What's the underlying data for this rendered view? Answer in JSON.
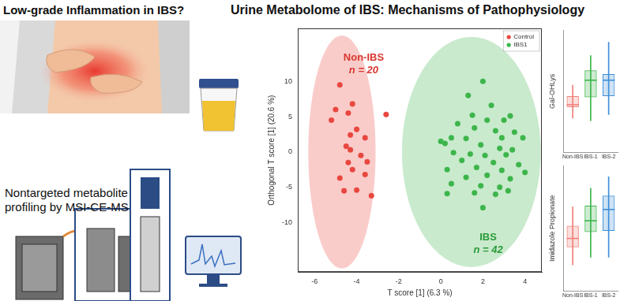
{
  "header": {
    "left_title": "Low-grade Inflammation in IBS?",
    "main_title": "Urine Metabolome of IBS: Mechanisms of Pathophysiology",
    "method_caption": "Nontargeted metabolite profiling by MSI-CE-MS"
  },
  "chart_data": [
    {
      "type": "scatter",
      "x_label": "T score [1] (6.3 %)",
      "y_label": "Orthogonal T score [1] (20.6 %)",
      "xlim": [
        -6.8,
        4.8
      ],
      "xticks": [
        -6,
        -4,
        -2,
        0,
        2,
        4
      ],
      "ylim": [
        -17,
        17.5
      ],
      "yticks": [
        -10,
        -5,
        0,
        5,
        10
      ],
      "grid": false,
      "legend": "upper right",
      "series": [
        {
          "name": "Control",
          "color": "#e8473f",
          "marker": "circle",
          "x": [
            -4.8,
            -4.2,
            -5.0,
            -4.4,
            -5.2,
            -2.6,
            -4.0,
            -4.3,
            -3.6,
            -4.5,
            -4.3,
            -3.8,
            -4.4,
            -3.5,
            -4.2,
            -3.6,
            -4.8,
            -4.6,
            -4.0,
            -3.3
          ],
          "y": [
            9.5,
            6.8,
            6.0,
            5.5,
            4.5,
            5.3,
            3.2,
            2.4,
            2.0,
            0.8,
            0.3,
            -0.5,
            -1.5,
            -1.4,
            -2.5,
            -3.2,
            -3.7,
            -5.5,
            -5.4,
            -6.2
          ],
          "ellipse": {
            "cx": -4.7,
            "cy": 0,
            "rx": 1.6,
            "ry": 16.5
          }
        },
        {
          "name": "IBS1",
          "color": "#3cb54a",
          "marker": "circle",
          "x": [
            2.0,
            1.3,
            2.4,
            1.5,
            2.2,
            3.0,
            3.3,
            0.8,
            1.6,
            2.6,
            3.5,
            0.5,
            1.2,
            2.9,
            3.9,
            0.0,
            0.2,
            1.9,
            2.8,
            3.4,
            0.6,
            1.4,
            2.1,
            3.1,
            1.0,
            2.5,
            3.7,
            0.3,
            1.7,
            2.9,
            4.0,
            1.2,
            2.2,
            3.3,
            0.5,
            1.9,
            2.8,
            0.3,
            1.6,
            2.6,
            3.2,
            2.0
          ],
          "y": [
            10.0,
            8.0,
            6.6,
            5.2,
            4.5,
            4.5,
            5.1,
            4.0,
            3.4,
            3.0,
            2.8,
            2.0,
            1.9,
            2.0,
            2.0,
            1.5,
            1.2,
            1.0,
            0.5,
            0.3,
            -0.1,
            -0.3,
            -0.5,
            -0.4,
            -1.2,
            -1.5,
            -1.8,
            -2.5,
            -2.2,
            -2.6,
            -2.9,
            -3.6,
            -3.3,
            -3.8,
            -4.5,
            -4.8,
            -5.0,
            -5.9,
            -5.8,
            -6.0,
            -5.5,
            -7.9
          ],
          "ellipse": {
            "cx": 1.45,
            "cy": 0,
            "rx": 3.3,
            "ry": 16.3
          }
        }
      ],
      "annotations": [
        {
          "lines": [
            "Non-IBS",
            "n = 20"
          ],
          "color": "#d9362e"
        },
        {
          "lines": [
            "IBS",
            "n = 42"
          ],
          "color": "#2a9a38"
        }
      ]
    },
    {
      "type": "box",
      "y_label": "Gal-OHLys",
      "categories": [
        "Non-IBS",
        "IBS-1",
        "IBS-2"
      ],
      "colors": [
        "#f08078",
        "#3cb54a",
        "#3f8fd8"
      ],
      "ylim": [
        0,
        10
      ],
      "grid": false,
      "tick_labels": "x",
      "min": [
        2.8,
        2.6,
        3.1
      ],
      "q1": [
        3.7,
        4.5,
        4.6
      ],
      "median": [
        3.9,
        5.9,
        5.9
      ],
      "q3": [
        4.6,
        6.7,
        6.4
      ],
      "max": [
        5.5,
        7.9,
        9.0
      ]
    },
    {
      "type": "box",
      "y_label": "Imidazole Propionate",
      "categories": [
        "Non-IBS",
        "IBS-1",
        "IBS-2"
      ],
      "colors": [
        "#f08078",
        "#3cb54a",
        "#3f8fd8"
      ],
      "ylim": [
        0,
        10
      ],
      "grid": false,
      "tick_labels": "x",
      "min": [
        2.1,
        2.7,
        2.7
      ],
      "q1": [
        3.5,
        4.7,
        4.8
      ],
      "median": [
        4.2,
        5.6,
        6.5
      ],
      "q3": [
        5.2,
        6.8,
        7.6
      ],
      "max": [
        6.7,
        8.2,
        9.1
      ]
    }
  ]
}
